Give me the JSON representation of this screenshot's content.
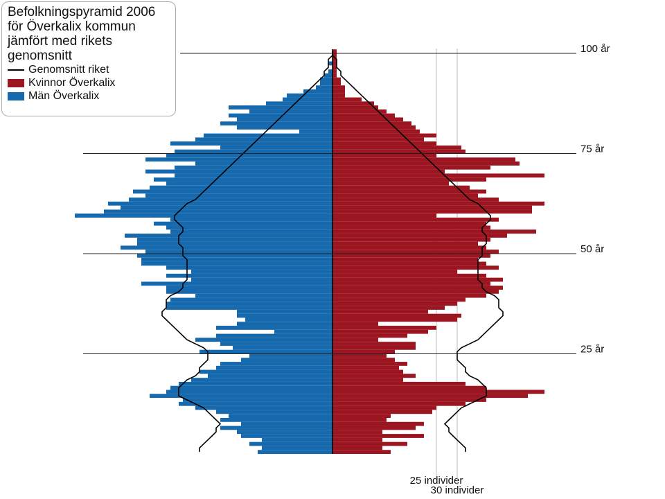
{
  "chart_data": {
    "type": "population-pyramid",
    "title": "Befolkningspyramid 2006 för Överkalix kommun jämfört med rikets genomsnitt",
    "series": [
      {
        "name": "Genomsnitt riket",
        "color": "#000000",
        "values": [
          32,
          32,
          31,
          30,
          29,
          28,
          28,
          27,
          28,
          29,
          30,
          31,
          33,
          35,
          37,
          37,
          37,
          36,
          35,
          33,
          32,
          32,
          31,
          30,
          30,
          30,
          31,
          33,
          35,
          36,
          37,
          38,
          39,
          40,
          41,
          41,
          40,
          40,
          40,
          39,
          37,
          36,
          36,
          35,
          35,
          35,
          35,
          35,
          35,
          36,
          36,
          36,
          37,
          37,
          37,
          36,
          36,
          37,
          38,
          38,
          37,
          36,
          35,
          33,
          32,
          31,
          30,
          29,
          28,
          27,
          26,
          25,
          24,
          23,
          22,
          21,
          20,
          19,
          18,
          17,
          16,
          15,
          14,
          13,
          12,
          11,
          10,
          9,
          8,
          7,
          6,
          5,
          4,
          3,
          2,
          2,
          1,
          1,
          1,
          0,
          0
        ]
      },
      {
        "name": "Kvinnor Överkalix",
        "color": "#9b1620",
        "values": [
          14,
          12,
          18,
          12,
          22,
          12,
          20,
          22,
          13,
          14,
          24,
          25,
          32,
          37,
          47,
          51,
          37,
          32,
          17,
          20,
          17,
          16,
          18,
          15,
          13,
          15,
          20,
          20,
          11,
          18,
          23,
          25,
          11,
          30,
          31,
          23,
          27,
          30,
          32,
          37,
          40,
          41,
          38,
          41,
          37,
          30,
          40,
          37,
          35,
          38,
          40,
          37,
          35,
          38,
          42,
          49,
          38,
          37,
          40,
          25,
          48,
          48,
          51,
          40,
          35,
          37,
          33,
          28,
          37,
          51,
          27,
          38,
          45,
          44,
          25,
          32,
          31,
          25,
          22,
          25,
          21,
          20,
          19,
          17,
          15,
          13,
          11,
          10,
          7,
          3,
          3,
          3,
          2,
          2,
          1,
          1,
          1,
          1,
          1,
          1,
          1
        ]
      },
      {
        "name": "Män Överkalix",
        "color": "#1769ae",
        "values": [
          18,
          17,
          20,
          17,
          22,
          23,
          27,
          22,
          27,
          25,
          28,
          33,
          37,
          36,
          44,
          40,
          39,
          37,
          34,
          30,
          32,
          28,
          27,
          22,
          20,
          32,
          24,
          27,
          33,
          28,
          14,
          28,
          23,
          21,
          23,
          23,
          40,
          40,
          39,
          33,
          40,
          40,
          46,
          34,
          40,
          34,
          40,
          46,
          46,
          47,
          45,
          51,
          47,
          47,
          50,
          39,
          40,
          43,
          39,
          62,
          55,
          51,
          54,
          49,
          45,
          48,
          44,
          40,
          43,
          38,
          45,
          38,
          33,
          45,
          40,
          38,
          27,
          39,
          33,
          31,
          8,
          23,
          27,
          23,
          25,
          20,
          25,
          16,
          12,
          11,
          7,
          4,
          3,
          3,
          2,
          1,
          0,
          1,
          0,
          0,
          0
        ]
      }
    ],
    "xlim": [
      0,
      65
    ],
    "xticks": [
      {
        "value": 25,
        "label": "25 individer"
      },
      {
        "value": 30,
        "label": "30 individer"
      }
    ],
    "ylim": [
      0,
      100
    ],
    "yticks": [
      {
        "value": 25,
        "label": "25 år"
      },
      {
        "value": 50,
        "label": "50 år"
      },
      {
        "value": 75,
        "label": "75 år"
      },
      {
        "value": 100,
        "label": "100 år"
      }
    ]
  }
}
